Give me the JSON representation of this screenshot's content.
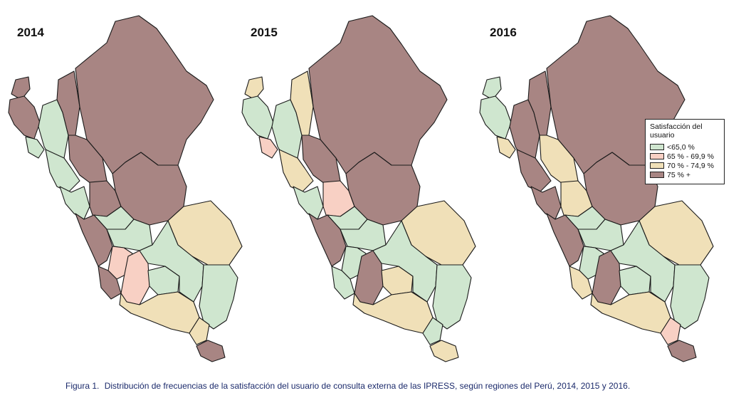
{
  "panels": [
    {
      "year": "2014"
    },
    {
      "year": "2015"
    },
    {
      "year": "2016"
    }
  ],
  "legend": {
    "title": "Satisfacción del usuario",
    "items": [
      {
        "label": "<65,0 %",
        "color": "#cfe6cf"
      },
      {
        "label": "65 % - 69,9 %",
        "color": "#f8d0c4"
      },
      {
        "label": "70 % - 74,9 %",
        "color": "#f0e0b8"
      },
      {
        "label": "75 % +",
        "color": "#a88583"
      }
    ]
  },
  "caption": {
    "label": "Figura 1.",
    "text": "Distribución de frecuencias de la satisfacción del usuario de consulta externa de las IPRESS, según regiones del Perú, 2014, 2015 y 2016."
  },
  "colors": {
    "green": "#cfe6cf",
    "pink": "#f8d0c4",
    "tan": "#f0e0b8",
    "brown": "#a88583"
  }
}
